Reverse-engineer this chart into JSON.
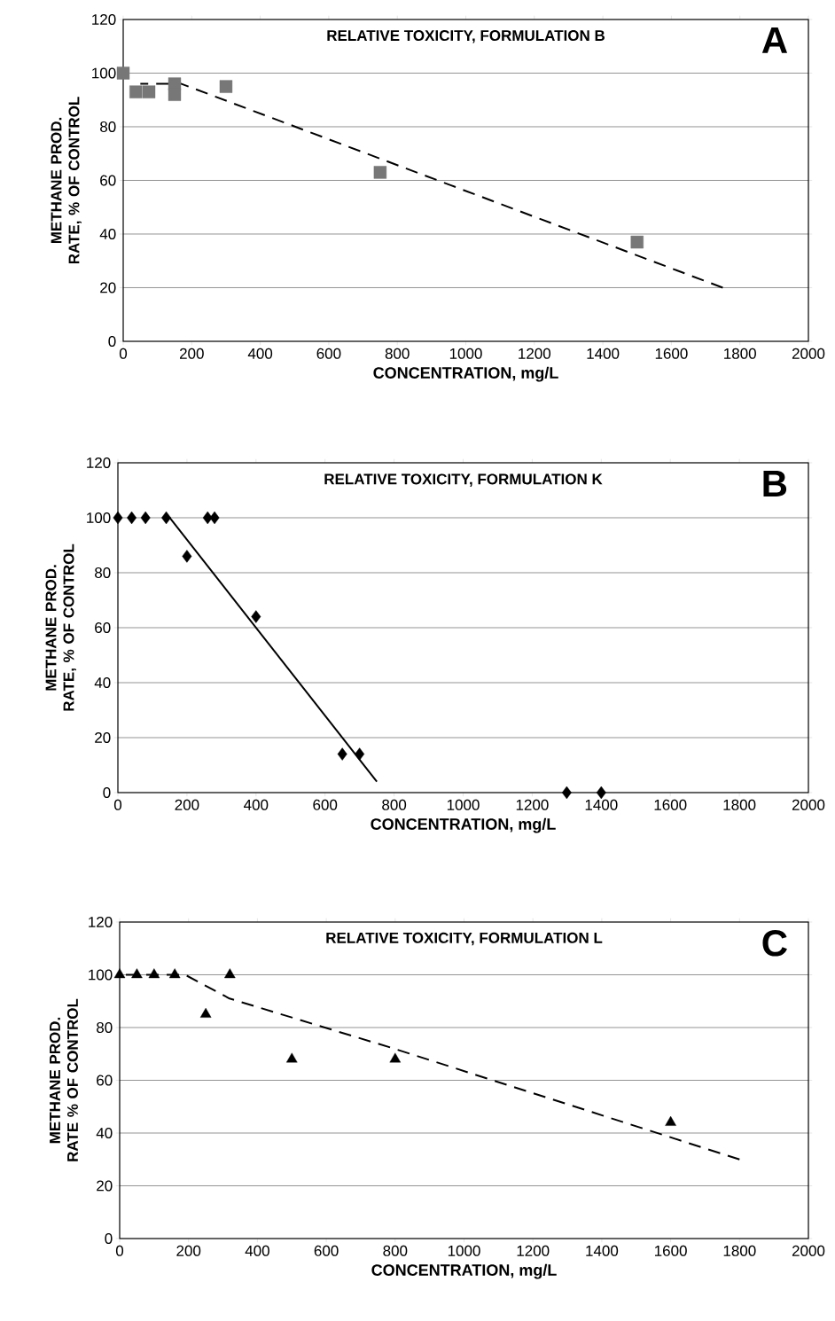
{
  "chart_data": [
    {
      "type": "scatter",
      "title": "RELATIVE TOXICITY, FORMULATION B",
      "xlabel": "CONCENTRATION, mg/L",
      "ylabel": "METHANE PROD. RATE, % OF CONTROL",
      "annotations": [
        "A"
      ],
      "xlim": [
        0,
        2000
      ],
      "ylim": [
        0,
        120
      ],
      "xticks": [
        0,
        200,
        400,
        600,
        800,
        1000,
        1200,
        1400,
        1600,
        1800,
        2000
      ],
      "yticks": [
        0,
        20,
        40,
        60,
        80,
        100,
        120
      ],
      "grid": "y",
      "series": [
        {
          "marker": "square",
          "color": "#777777",
          "x": [
            0,
            37,
            75,
            150,
            150,
            300,
            750,
            1500
          ],
          "values": [
            100,
            93,
            93,
            96,
            92,
            95,
            63,
            37
          ]
        },
        {
          "type": "line",
          "line_style": "dashed",
          "color": "#000000",
          "x": [
            50,
            170,
            1750
          ],
          "values": [
            96,
            96,
            20
          ]
        }
      ]
    },
    {
      "type": "scatter",
      "title": "RELATIVE TOXICITY, FORMULATION K",
      "xlabel": "CONCENTRATION, mg/L",
      "ylabel": "METHANE PROD. RATE, % OF CONTROL",
      "annotations": [
        "B"
      ],
      "xlim": [
        0,
        2000
      ],
      "ylim": [
        0,
        120
      ],
      "xticks": [
        0,
        200,
        400,
        600,
        800,
        1000,
        1200,
        1400,
        1600,
        1800,
        2000
      ],
      "yticks": [
        0,
        20,
        40,
        60,
        80,
        100,
        120
      ],
      "grid": "y",
      "series": [
        {
          "marker": "diamond",
          "color": "#000000",
          "x": [
            0,
            40,
            80,
            140,
            200,
            260,
            280,
            400,
            650,
            700,
            1300,
            1400
          ],
          "values": [
            100,
            100,
            100,
            100,
            86,
            100,
            100,
            64,
            14,
            14,
            0,
            0
          ]
        },
        {
          "type": "line",
          "line_style": "solid",
          "color": "#000000",
          "x": [
            150,
            750
          ],
          "values": [
            100,
            4
          ]
        }
      ]
    },
    {
      "type": "scatter",
      "title": "RELATIVE TOXICITY, FORMULATION L",
      "xlabel": "CONCENTRATION, mg/L",
      "ylabel": "METHANE PROD. RATE % OF CONTROL",
      "annotations": [
        "C"
      ],
      "xlim": [
        0,
        2000
      ],
      "ylim": [
        0,
        120
      ],
      "xticks": [
        0,
        200,
        400,
        600,
        800,
        1000,
        1200,
        1400,
        1600,
        1800,
        2000
      ],
      "yticks": [
        0,
        20,
        40,
        60,
        80,
        100,
        120
      ],
      "grid": "y",
      "series": [
        {
          "marker": "triangle",
          "color": "#000000",
          "x": [
            0,
            50,
            100,
            160,
            250,
            320,
            500,
            800,
            1600
          ],
          "values": [
            100,
            100,
            100,
            100,
            85,
            100,
            68,
            68,
            44
          ]
        },
        {
          "type": "line",
          "line_style": "dashed",
          "color": "#000000",
          "x": [
            0,
            190,
            319,
            797,
            1800
          ],
          "values": [
            100,
            100,
            91,
            72,
            30
          ]
        }
      ]
    }
  ]
}
